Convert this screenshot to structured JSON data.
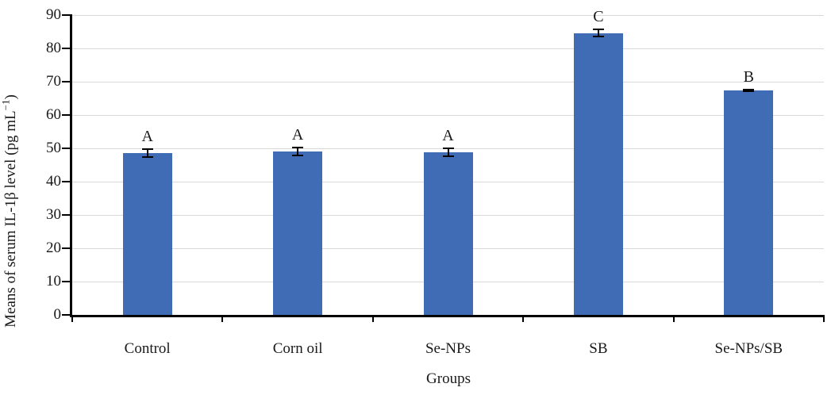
{
  "chart_data": {
    "type": "bar",
    "title": "",
    "categories": [
      "Control",
      "Corn oil",
      "Se-NPs",
      "SB",
      "Se-NPs/SB"
    ],
    "values": [
      48.5,
      49.0,
      48.8,
      84.6,
      67.4
    ],
    "errors": [
      1.2,
      1.2,
      1.2,
      1.0,
      0.3
    ],
    "sig_letters": [
      "A",
      "A",
      "A",
      "C",
      "B"
    ],
    "xlabel": "Groups",
    "ylabel": "Means of serum IL-1β level (pg mL−1)",
    "ylabel_parts": {
      "main": "Means of serum IL-1β level (pg mL",
      "sup": "−1",
      "close": ")"
    },
    "ylim": [
      0,
      90
    ],
    "ytick_step": 10,
    "yticks": [
      0,
      10,
      20,
      30,
      40,
      50,
      60,
      70,
      80,
      90
    ],
    "grid": true,
    "legend": "none",
    "bar_color": "#3f6cb4",
    "gridline_color": "#d9d9d9",
    "axis_color": "#000000",
    "error_bar_color": "#000000"
  }
}
